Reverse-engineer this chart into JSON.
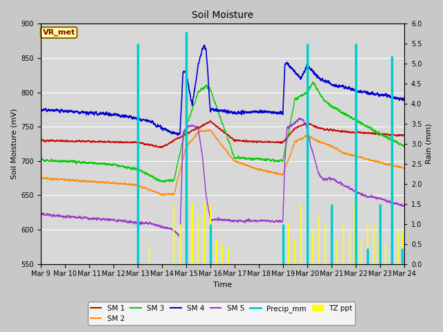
{
  "title": "Soil Moisture",
  "xlabel": "Time",
  "ylabel_left": "Soil Moisture (mV)",
  "ylabel_right": "Rain (mm)",
  "ylim_left": [
    550,
    900
  ],
  "ylim_right": [
    0.0,
    6.0
  ],
  "yticks_left": [
    550,
    600,
    650,
    700,
    750,
    800,
    850,
    900
  ],
  "yticks_right": [
    0.0,
    0.5,
    1.0,
    1.5,
    2.0,
    2.5,
    3.0,
    3.5,
    4.0,
    4.5,
    5.0,
    5.5,
    6.0
  ],
  "xlim": [
    0,
    360
  ],
  "annotation_text": "VR_met",
  "annotation_bg": "#ffffaa",
  "annotation_border": "#886600",
  "annotation_color": "#880000",
  "xtick_labels": [
    "Mar 9",
    "Mar 10",
    "Mar 11",
    "Mar 12",
    "Mar 13",
    "Mar 14",
    "Mar 15",
    "Mar 16",
    "Mar 17",
    "Mar 18",
    "Mar 19",
    "Mar 20",
    "Mar 21",
    "Mar 22",
    "Mar 23",
    "Mar 24"
  ],
  "colors": {
    "SM1": "#cc0000",
    "SM2": "#ff8800",
    "SM3": "#00cc00",
    "SM4": "#0000cc",
    "SM5": "#9933cc",
    "Precip_mm": "#00cccc",
    "TZ_ppt": "#ffff00"
  },
  "legend_labels": [
    "SM 1",
    "SM 2",
    "SM 3",
    "SM 4",
    "SM 5",
    "Precip_mm",
    "TZ ppt"
  ],
  "precip_spikes": [
    [
      96,
      5.5
    ],
    [
      144,
      5.8
    ],
    [
      168,
      1.0
    ],
    [
      240,
      1.0
    ],
    [
      264,
      5.5
    ],
    [
      288,
      1.5
    ],
    [
      312,
      5.5
    ],
    [
      324,
      0.4
    ],
    [
      336,
      1.5
    ],
    [
      348,
      5.2
    ],
    [
      358,
      0.4
    ]
  ],
  "tz_spikes": [
    [
      96,
      1.0
    ],
    [
      108,
      0.5
    ],
    [
      132,
      1.5
    ],
    [
      138,
      1.0
    ],
    [
      144,
      1.5
    ],
    [
      150,
      1.5
    ],
    [
      156,
      1.2
    ],
    [
      162,
      1.5
    ],
    [
      168,
      1.5
    ],
    [
      174,
      0.6
    ],
    [
      180,
      0.5
    ],
    [
      186,
      0.4
    ],
    [
      240,
      0.3
    ],
    [
      246,
      1.0
    ],
    [
      252,
      0.6
    ],
    [
      258,
      1.5
    ],
    [
      264,
      1.5
    ],
    [
      270,
      0.8
    ],
    [
      276,
      1.2
    ],
    [
      282,
      1.0
    ],
    [
      288,
      1.5
    ],
    [
      294,
      0.6
    ],
    [
      300,
      1.0
    ],
    [
      306,
      0.8
    ],
    [
      312,
      1.5
    ],
    [
      318,
      0.6
    ],
    [
      324,
      1.0
    ],
    [
      330,
      1.0
    ],
    [
      336,
      0.8
    ],
    [
      342,
      0.5
    ],
    [
      348,
      1.5
    ],
    [
      354,
      0.8
    ],
    [
      358,
      0.8
    ]
  ]
}
